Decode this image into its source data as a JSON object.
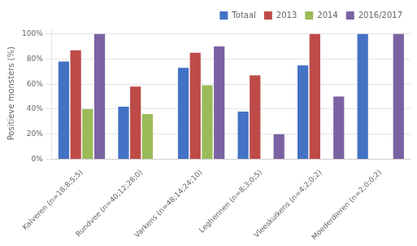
{
  "chart_data": {
    "type": "bar",
    "categories": [
      "Kalveren (n=18;8;5;5)",
      "Rundvee (n=40;12;28;0)",
      "Varkens (n=48;14;24;10)",
      "Leghennen (n=8;3;0;5)",
      "Vleeskuikens (n=4;2;0;2)",
      "Moederdieren (n=2;0;0;2)"
    ],
    "series": [
      {
        "name": "Totaal",
        "color": "#4472C4",
        "values": [
          78,
          42,
          73,
          38,
          75,
          100
        ]
      },
      {
        "name": "2013",
        "color": "#BE4B48",
        "values": [
          87,
          58,
          85,
          67,
          100,
          0
        ]
      },
      {
        "name": "2014",
        "color": "#9BBB59",
        "values": [
          40,
          36,
          59,
          0,
          0,
          0
        ]
      },
      {
        "name": "2016/2017",
        "color": "#7B62A3",
        "values": [
          100,
          0,
          90,
          20,
          50,
          100
        ]
      }
    ],
    "ylabel": "Positieve monsters (%)",
    "ylim": [
      0,
      105
    ],
    "yticks": [
      {
        "value": 0,
        "label": "0%"
      },
      {
        "value": 20,
        "label": "20%"
      },
      {
        "value": 40,
        "label": "40%"
      },
      {
        "value": 60,
        "label": "60%"
      },
      {
        "value": 80,
        "label": "80%"
      },
      {
        "value": 100,
        "label": "100%"
      }
    ],
    "grid": true,
    "legend": "upper right"
  }
}
